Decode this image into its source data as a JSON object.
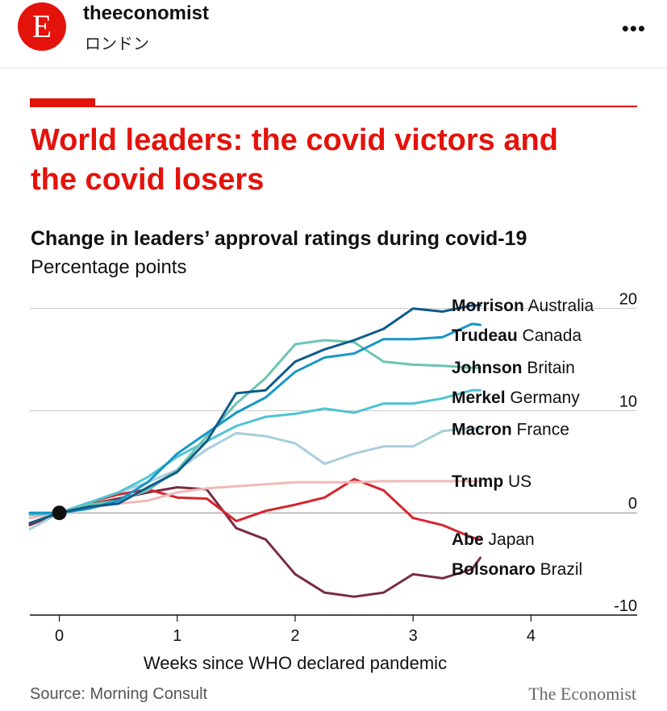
{
  "account": {
    "avatar_letter": "E",
    "name": "theeconomist",
    "location": "ロンドン",
    "more_icon": "ellipsis-icon",
    "more_label": "•••"
  },
  "chart_title": "World leaders: the covid victors and the covid losers",
  "source": "Source: Morning Consult",
  "brand": "The Economist",
  "colors": {
    "accent": "#e3120b"
  },
  "chart_data": {
    "type": "line",
    "title": "Change in leaders’ approval ratings during covid-19",
    "subtitle": "Percentage points",
    "xlabel": "Weeks since WHO declared pandemic",
    "ylabel": "",
    "xlim": [
      -0.25,
      4.9
    ],
    "ylim": [
      -10,
      21
    ],
    "x_ticks": [
      0,
      1,
      2,
      3,
      4
    ],
    "y_ticks": [
      20,
      10,
      0,
      -10
    ],
    "y_tick_labels": [
      "20",
      "10",
      "0",
      "-10"
    ],
    "gridlines": [
      20,
      10,
      0,
      -10
    ],
    "grid": true,
    "start_point": {
      "x": 0,
      "y": 0
    },
    "series": [
      {
        "leader": "Morrison",
        "country": "Australia",
        "color": "#0e5a8a",
        "points": [
          [
            -0.25,
            -1
          ],
          [
            0,
            0
          ],
          [
            0.25,
            0.6
          ],
          [
            0.5,
            0.9
          ],
          [
            0.75,
            2.5
          ],
          [
            1,
            4
          ],
          [
            1.25,
            7
          ],
          [
            1.5,
            11.7
          ],
          [
            1.75,
            12
          ],
          [
            2,
            14.8
          ],
          [
            2.25,
            16
          ],
          [
            2.5,
            16.9
          ],
          [
            2.75,
            18
          ],
          [
            3,
            20
          ],
          [
            3.25,
            19.7
          ],
          [
            3.5,
            20.3
          ],
          [
            3.57,
            20.3
          ]
        ]
      },
      {
        "leader": "Trudeau",
        "country": "Canada",
        "color": "#1696c8",
        "points": [
          [
            -0.25,
            0
          ],
          [
            0,
            0
          ],
          [
            0.25,
            0.4
          ],
          [
            0.5,
            1.2
          ],
          [
            0.75,
            3
          ],
          [
            1,
            5.8
          ],
          [
            1.25,
            7.8
          ],
          [
            1.5,
            9.8
          ],
          [
            1.75,
            11.3
          ],
          [
            2,
            13.8
          ],
          [
            2.25,
            15.2
          ],
          [
            2.5,
            15.6
          ],
          [
            2.75,
            17
          ],
          [
            3,
            17
          ],
          [
            3.25,
            17.2
          ],
          [
            3.5,
            18.5
          ],
          [
            3.57,
            18.4
          ]
        ]
      },
      {
        "leader": "Johnson",
        "country": "Britain",
        "color": "#6cc4b3",
        "points": [
          [
            -0.25,
            0
          ],
          [
            0,
            0
          ],
          [
            0.25,
            0.8
          ],
          [
            0.5,
            1.2
          ],
          [
            0.75,
            2.2
          ],
          [
            1,
            4.2
          ],
          [
            1.25,
            7.5
          ],
          [
            1.5,
            10.7
          ],
          [
            1.75,
            13.2
          ],
          [
            2,
            16.5
          ],
          [
            2.25,
            16.9
          ],
          [
            2.5,
            16.7
          ],
          [
            2.75,
            14.8
          ],
          [
            3,
            14.5
          ],
          [
            3.25,
            14.4
          ],
          [
            3.5,
            14.2
          ],
          [
            3.57,
            14.2
          ]
        ]
      },
      {
        "leader": "Merkel",
        "country": "Germany",
        "color": "#4ec4d2",
        "points": [
          [
            -0.25,
            -0.2
          ],
          [
            0,
            0
          ],
          [
            0.25,
            1
          ],
          [
            0.5,
            2
          ],
          [
            0.75,
            3.5
          ],
          [
            1,
            5.5
          ],
          [
            1.25,
            7
          ],
          [
            1.5,
            8.5
          ],
          [
            1.75,
            9.4
          ],
          [
            2,
            9.7
          ],
          [
            2.25,
            10.2
          ],
          [
            2.5,
            9.8
          ],
          [
            2.75,
            10.7
          ],
          [
            3,
            10.7
          ],
          [
            3.25,
            11.2
          ],
          [
            3.5,
            12
          ],
          [
            3.57,
            12
          ]
        ]
      },
      {
        "leader": "Macron",
        "country": "France",
        "color": "#a8cedd",
        "points": [
          [
            -0.25,
            -1.6
          ],
          [
            0,
            0
          ],
          [
            0.25,
            1
          ],
          [
            0.5,
            2
          ],
          [
            0.75,
            3
          ],
          [
            1,
            4.2
          ],
          [
            1.25,
            6.2
          ],
          [
            1.5,
            7.8
          ],
          [
            1.75,
            7.5
          ],
          [
            2,
            6.8
          ],
          [
            2.25,
            4.8
          ],
          [
            2.5,
            5.8
          ],
          [
            2.75,
            6.5
          ],
          [
            3,
            6.5
          ],
          [
            3.25,
            8
          ],
          [
            3.5,
            8.3
          ],
          [
            3.57,
            8.2
          ]
        ]
      },
      {
        "leader": "Trump",
        "country": "US",
        "color": "#f0b9b5",
        "points": [
          [
            -0.25,
            -0.5
          ],
          [
            0,
            0
          ],
          [
            0.25,
            0.5
          ],
          [
            0.5,
            0.9
          ],
          [
            0.75,
            1.2
          ],
          [
            1,
            2
          ],
          [
            1.25,
            2.4
          ],
          [
            1.5,
            2.6
          ],
          [
            1.75,
            2.8
          ],
          [
            2,
            3
          ],
          [
            2.25,
            3
          ],
          [
            2.5,
            3
          ],
          [
            2.75,
            3.1
          ],
          [
            3,
            3.1
          ],
          [
            3.25,
            3.1
          ],
          [
            3.5,
            3.1
          ],
          [
            3.57,
            3.1
          ]
        ]
      },
      {
        "leader": "Abe",
        "country": "Japan",
        "color": "#d7242e",
        "points": [
          [
            -0.25,
            -1
          ],
          [
            0,
            0
          ],
          [
            0.25,
            1
          ],
          [
            0.5,
            1.8
          ],
          [
            0.75,
            2.3
          ],
          [
            1,
            1.5
          ],
          [
            1.25,
            1.4
          ],
          [
            1.5,
            -0.8
          ],
          [
            1.75,
            0.2
          ],
          [
            2,
            0.8
          ],
          [
            2.25,
            1.5
          ],
          [
            2.5,
            3.3
          ],
          [
            2.75,
            2.2
          ],
          [
            3,
            -0.5
          ],
          [
            3.25,
            -1.2
          ],
          [
            3.5,
            -2.4
          ],
          [
            3.57,
            -2.6
          ]
        ]
      },
      {
        "leader": "Bolsonaro",
        "country": "Brazil",
        "color": "#7a2c40",
        "points": [
          [
            -0.25,
            -1.2
          ],
          [
            0,
            0
          ],
          [
            0.25,
            0.8
          ],
          [
            0.5,
            1.4
          ],
          [
            0.75,
            2
          ],
          [
            1,
            2.5
          ],
          [
            1.25,
            2.3
          ],
          [
            1.5,
            -1.5
          ],
          [
            1.75,
            -2.6
          ],
          [
            2,
            -6
          ],
          [
            2.25,
            -7.8
          ],
          [
            2.5,
            -8.2
          ],
          [
            2.75,
            -7.8
          ],
          [
            3,
            -6
          ],
          [
            3.25,
            -6.4
          ],
          [
            3.5,
            -5.5
          ],
          [
            3.57,
            -4.4
          ]
        ]
      }
    ]
  }
}
